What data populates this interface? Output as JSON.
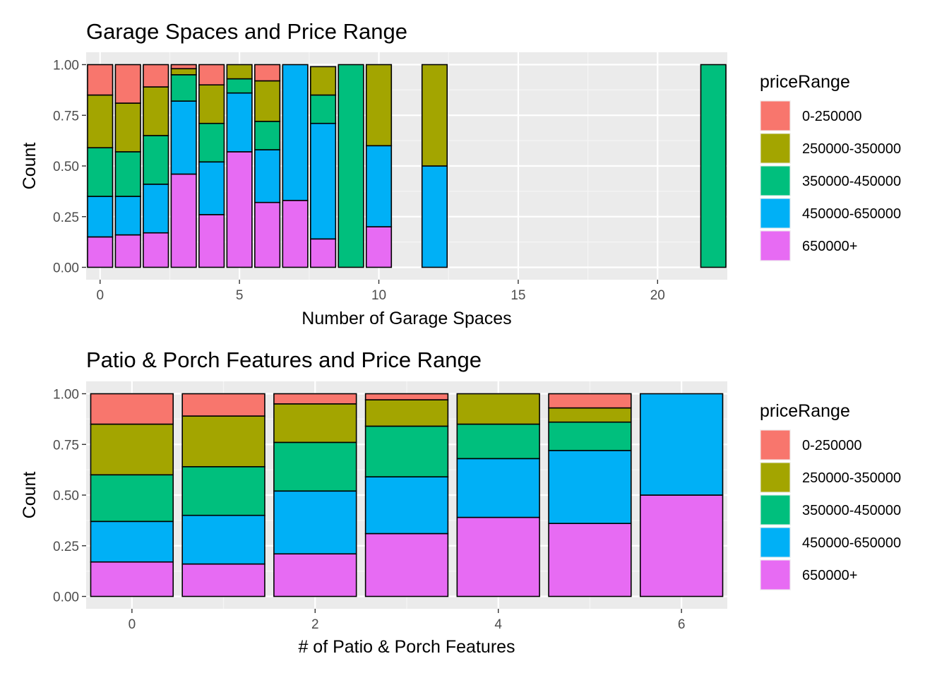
{
  "chart_data": [
    {
      "type": "bar",
      "stacked": true,
      "normalized": true,
      "title": "Garage Spaces and Price Range",
      "xlabel": "Number of Garage Spaces",
      "ylabel": "Count",
      "xlim": [
        -0.5,
        22.5
      ],
      "ylim": [
        0,
        1
      ],
      "xticks": [
        0,
        5,
        10,
        15,
        20
      ],
      "xtick_labels": [
        "0",
        "5",
        "10",
        "15",
        "20"
      ],
      "yticks": [
        0,
        0.25,
        0.5,
        0.75,
        1
      ],
      "ytick_labels": [
        "0.00",
        "0.25",
        "0.50",
        "0.75",
        "1.00"
      ],
      "bar_width": 0.9,
      "grid": true,
      "legend": {
        "title": "priceRange",
        "position": "right"
      },
      "x": [
        0,
        1,
        2,
        3,
        4,
        5,
        6,
        7,
        8,
        9,
        10,
        12,
        22
      ],
      "series": [
        {
          "name": "0-250000",
          "color": "#F8766D",
          "values": [
            0.15,
            0.19,
            0.11,
            0.02,
            0.1,
            0.0,
            0.08,
            0.0,
            0.0,
            0.0,
            0.0,
            0.0,
            0.0
          ]
        },
        {
          "name": "250000-350000",
          "color": "#A3A500",
          "values": [
            0.26,
            0.24,
            0.24,
            0.03,
            0.19,
            0.07,
            0.2,
            0.0,
            0.14,
            0.0,
            0.4,
            0.5,
            0.0
          ]
        },
        {
          "name": "350000-450000",
          "color": "#00BF7D",
          "values": [
            0.24,
            0.22,
            0.24,
            0.13,
            0.19,
            0.07,
            0.14,
            0.0,
            0.14,
            1.0,
            0.0,
            0.0,
            1.0
          ]
        },
        {
          "name": "450000-650000",
          "color": "#00B0F6",
          "values": [
            0.2,
            0.19,
            0.24,
            0.36,
            0.26,
            0.29,
            0.26,
            0.67,
            0.57,
            0.0,
            0.4,
            0.5,
            0.0
          ]
        },
        {
          "name": "650000+",
          "color": "#E76BF3",
          "values": [
            0.15,
            0.16,
            0.17,
            0.46,
            0.26,
            0.57,
            0.32,
            0.33,
            0.14,
            0.0,
            0.2,
            0.0,
            0.0
          ]
        }
      ]
    },
    {
      "type": "bar",
      "stacked": true,
      "normalized": true,
      "title": "Patio & Porch Features and Price Range",
      "xlabel": "# of Patio & Porch Features",
      "ylabel": "Count",
      "xlim": [
        -0.5,
        6.5
      ],
      "ylim": [
        0,
        1
      ],
      "xticks": [
        0,
        2,
        4,
        6
      ],
      "xtick_labels": [
        "0",
        "2",
        "4",
        "6"
      ],
      "yticks": [
        0,
        0.25,
        0.5,
        0.75,
        1
      ],
      "ytick_labels": [
        "0.00",
        "0.25",
        "0.50",
        "0.75",
        "1.00"
      ],
      "bar_width": 0.9,
      "grid": true,
      "legend": {
        "title": "priceRange",
        "position": "right"
      },
      "x": [
        0,
        1,
        2,
        3,
        4,
        5,
        6
      ],
      "series": [
        {
          "name": "0-250000",
          "color": "#F8766D",
          "values": [
            0.15,
            0.11,
            0.05,
            0.03,
            0.0,
            0.07,
            0.0
          ]
        },
        {
          "name": "250000-350000",
          "color": "#A3A500",
          "values": [
            0.25,
            0.25,
            0.19,
            0.13,
            0.15,
            0.07,
            0.0
          ]
        },
        {
          "name": "350000-450000",
          "color": "#00BF7D",
          "values": [
            0.23,
            0.24,
            0.24,
            0.25,
            0.17,
            0.14,
            0.0
          ]
        },
        {
          "name": "450000-650000",
          "color": "#00B0F6",
          "values": [
            0.2,
            0.24,
            0.31,
            0.28,
            0.29,
            0.36,
            0.5
          ]
        },
        {
          "name": "650000+",
          "color": "#E76BF3",
          "values": [
            0.17,
            0.16,
            0.21,
            0.31,
            0.39,
            0.36,
            0.5
          ]
        }
      ]
    }
  ]
}
